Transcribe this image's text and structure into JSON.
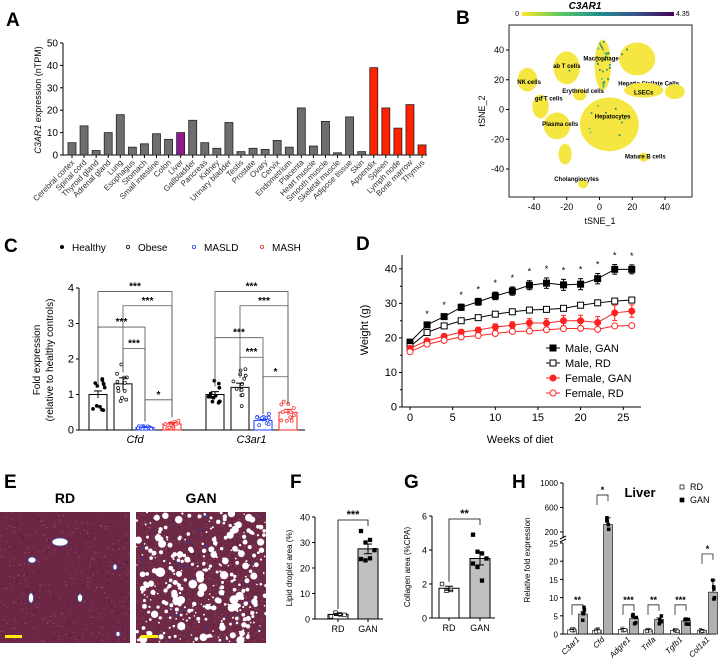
{
  "panel_letters": [
    "A",
    "B",
    "C",
    "D",
    "E",
    "F",
    "G",
    "H"
  ],
  "chart_data": [
    {
      "id": "A",
      "type": "bar",
      "ylabel_italic": "C3AR1",
      "ylabel_rest": " expression (nTPM)",
      "ylim": [
        0,
        50
      ],
      "yticks": [
        0,
        10,
        20,
        30,
        40,
        50
      ],
      "categories": [
        "Cerebral cortex",
        "Spinal cord",
        "Thyroid gland",
        "Adrenal gland",
        "Lung",
        "Esophagus",
        "Stomach",
        "Small intestine",
        "Colon",
        "Liver",
        "Gallbladder",
        "Pancreas",
        "Kidney",
        "Urinary bladder",
        "Testis",
        "Prostate",
        "Ovary",
        "Cervix",
        "Endometrium",
        "Placenta",
        "Heart muscle",
        "Smooth muscle",
        "Skeletal muscle",
        "Adipose tissue",
        "Skin",
        "Appendix",
        "Spleen",
        "Lymph node",
        "Bone marrow",
        "Thymus"
      ],
      "values": [
        5.5,
        13,
        2,
        10,
        18,
        3.5,
        5,
        9.5,
        7,
        10,
        15.5,
        5.5,
        3,
        14.5,
        1.5,
        3,
        2.5,
        6.5,
        3.5,
        21,
        4,
        15,
        1,
        17,
        1.5,
        39,
        21,
        12,
        22.5,
        4.5
      ],
      "group": [
        "g",
        "g",
        "g",
        "g",
        "g",
        "g",
        "g",
        "g",
        "g",
        "liver",
        "g",
        "g",
        "g",
        "g",
        "g",
        "g",
        "g",
        "g",
        "g",
        "g",
        "g",
        "g",
        "g",
        "g",
        "g",
        "immune",
        "immune",
        "immune",
        "immune",
        "immune"
      ],
      "colors": {
        "g": "#6e6e6e",
        "liver": "#8e1a8e",
        "immune": "#ff2200"
      }
    },
    {
      "id": "B",
      "type": "scatter",
      "title": "C3AR1",
      "colorbar_min": "0",
      "colorbar_max": "4.35",
      "xlabel": "tSNE_1",
      "ylabel": "tSNE_2",
      "xlim": [
        -55,
        55
      ],
      "ylim": [
        -55,
        55
      ],
      "xticks": [
        -40,
        -20,
        0,
        20,
        40
      ],
      "yticks": [
        -40,
        -20,
        0,
        20,
        40
      ],
      "clusters": [
        {
          "label": "Macrophages",
          "cx": 2,
          "cy": 30,
          "rx": 5,
          "ry": 17,
          "lx": 2,
          "ly": 33,
          "expr": 0.5
        },
        {
          "label": "ab T cells",
          "cx": -20,
          "cy": 28,
          "rx": 8,
          "ry": 11,
          "lx": -20,
          "ly": 28,
          "expr": 0.05
        },
        {
          "label": "NK cells",
          "cx": -44,
          "cy": 20,
          "rx": 6,
          "ry": 8,
          "lx": -43,
          "ly": 17,
          "expr": 0.05
        },
        {
          "label": "gd T cells",
          "cx": -36,
          "cy": 2,
          "rx": 5,
          "ry": 8,
          "lx": -31,
          "ly": 6,
          "expr": 0.05
        },
        {
          "label": "Erythroid cells",
          "cx": -12,
          "cy": 10,
          "rx": 4,
          "ry": 4,
          "lx": -10,
          "ly": 9,
          "expr": 0.02
        },
        {
          "label": "Hepatic Stellate Cells",
          "cx": 23,
          "cy": 34,
          "rx": 11,
          "ry": 11,
          "lx": 30,
          "ly": 16,
          "expr": 0.02
        },
        {
          "label": "LSECs",
          "cx": 27,
          "cy": 13,
          "rx": 12,
          "ry": 5,
          "lx": 27,
          "ly": 10,
          "expr": 0.02
        },
        {
          "label": "",
          "cx": 46,
          "cy": 12,
          "rx": 6,
          "ry": 5,
          "lx": 0,
          "ly": 0,
          "expr": 0.02
        },
        {
          "label": "Plasma cells",
          "cx": -26,
          "cy": -11,
          "rx": 8,
          "ry": 9,
          "lx": -24,
          "ly": -11,
          "expr": 0.02
        },
        {
          "label": "Hepatocytes",
          "cx": 6,
          "cy": -10,
          "rx": 18,
          "ry": 18,
          "lx": 8,
          "ly": -6,
          "expr": 0.02
        },
        {
          "label": "",
          "cx": -21,
          "cy": -30,
          "rx": 4,
          "ry": 7,
          "lx": 0,
          "ly": 0,
          "expr": 0.01
        },
        {
          "label": "Mature B cells",
          "cx": 27,
          "cy": -32,
          "rx": 3,
          "ry": 3,
          "lx": 28,
          "ly": -33,
          "expr": 0.01
        },
        {
          "label": "Cholangiocytes",
          "cx": -10,
          "cy": -50,
          "rx": 3,
          "ry": 3,
          "lx": -14,
          "ly": -48,
          "expr": 0.01
        }
      ]
    },
    {
      "id": "C",
      "type": "bar",
      "ylabel": "Fold expression",
      "ylabel2": "(relative to healthy controls)",
      "ylim": [
        0,
        4
      ],
      "yticks": [
        0,
        1,
        2,
        3,
        4
      ],
      "legend": [
        {
          "name": "Healthy",
          "color": "#000000",
          "filled": true
        },
        {
          "name": "Obese",
          "color": "#000000",
          "filled": false
        },
        {
          "name": "MASLD",
          "color": "#1a3cff",
          "filled": false
        },
        {
          "name": "MASH",
          "color": "#ff2222",
          "filled": false
        }
      ],
      "categories": [
        "Cfd",
        "C3ar1"
      ],
      "series_values": [
        [
          1.0,
          1.3,
          0.07,
          0.17
        ],
        [
          1.0,
          1.2,
          0.27,
          0.5
        ]
      ],
      "sem": [
        [
          0.1,
          0.17,
          0.02,
          0.04
        ],
        [
          0.08,
          0.12,
          0.03,
          0.08
        ]
      ],
      "comparisons": [
        {
          "group": 0,
          "from": 0,
          "to": 3,
          "level": 3.9,
          "label": "***"
        },
        {
          "group": 0,
          "from": 1,
          "to": 3,
          "level": 3.5,
          "label": "***"
        },
        {
          "group": 0,
          "from": 0,
          "to": 2,
          "level": 2.9,
          "label": "***"
        },
        {
          "group": 0,
          "from": 1,
          "to": 2,
          "level": 2.3,
          "label": "***"
        },
        {
          "group": 0,
          "from": 2,
          "to": 3,
          "level": 0.85,
          "label": "*"
        },
        {
          "group": 1,
          "from": 0,
          "to": 3,
          "level": 3.9,
          "label": "***"
        },
        {
          "group": 1,
          "from": 1,
          "to": 3,
          "level": 3.5,
          "label": "***"
        },
        {
          "group": 1,
          "from": 0,
          "to": 2,
          "level": 2.6,
          "label": "***"
        },
        {
          "group": 1,
          "from": 1,
          "to": 2,
          "level": 2.05,
          "label": "***"
        },
        {
          "group": 1,
          "from": 2,
          "to": 3,
          "level": 1.5,
          "label": "*"
        }
      ]
    },
    {
      "id": "D",
      "type": "line",
      "xlabel": "Weeks of diet",
      "ylabel": "Weight (g)",
      "xlim": [
        0,
        27
      ],
      "ylim": [
        0,
        44
      ],
      "xticks": [
        0,
        5,
        10,
        15,
        20,
        25
      ],
      "yticks": [
        0,
        10,
        20,
        30,
        40
      ],
      "x": [
        0,
        2,
        4,
        6,
        8,
        10,
        12,
        14,
        16,
        18,
        20,
        22,
        24,
        26
      ],
      "series": [
        {
          "name": "Male, GAN",
          "color": "#000000",
          "marker": "square",
          "filled": true,
          "values": [
            18.8,
            23.8,
            26.2,
            28.9,
            30.5,
            32.2,
            33.6,
            35.3,
            35.9,
            35.4,
            35.6,
            37.2,
            39.9,
            39.9
          ],
          "err": [
            0.5,
            0.6,
            0.7,
            0.9,
            1.0,
            1.1,
            1.2,
            1.3,
            1.5,
            1.6,
            1.6,
            1.5,
            1.4,
            1.3
          ]
        },
        {
          "name": "Male, RD",
          "color": "#000000",
          "marker": "square",
          "filled": false,
          "values": [
            17.5,
            21.6,
            23.5,
            25.0,
            25.9,
            26.9,
            27.6,
            28.1,
            28.3,
            28.6,
            29.5,
            30.2,
            30.7,
            31.0
          ],
          "err": [
            0.4,
            0.4,
            0.4,
            0.4,
            0.4,
            0.4,
            0.4,
            0.4,
            0.5,
            0.5,
            0.6,
            0.8,
            0.8,
            0.8
          ]
        },
        {
          "name": "Female, GAN",
          "color": "#ff2222",
          "marker": "circle",
          "filled": true,
          "values": [
            17.0,
            19.2,
            20.5,
            21.7,
            22.3,
            23.2,
            23.7,
            24.4,
            24.3,
            25.0,
            25.0,
            24.5,
            27.3,
            27.8
          ],
          "err": [
            0.4,
            0.5,
            0.6,
            0.7,
            0.8,
            0.9,
            1.0,
            1.2,
            1.3,
            1.5,
            1.6,
            1.7,
            2.2,
            1.8
          ]
        },
        {
          "name": "Female, RD",
          "color": "#ff2222",
          "marker": "circle",
          "filled": false,
          "values": [
            16.0,
            18.2,
            19.3,
            20.3,
            20.7,
            21.3,
            21.9,
            22.0,
            22.4,
            22.7,
            22.8,
            22.5,
            23.5,
            23.6
          ],
          "err": [
            0.3,
            0.3,
            0.3,
            0.3,
            0.3,
            0.3,
            0.3,
            0.3,
            0.3,
            0.3,
            0.3,
            0.3,
            0.3,
            0.3
          ]
        }
      ],
      "significance_label": "*",
      "significant_weeks": [
        2,
        4,
        6,
        8,
        10,
        12,
        14,
        16,
        18,
        20,
        22,
        24,
        26
      ],
      "legend_position": "bottom-right"
    },
    {
      "id": "E",
      "type": "image",
      "labels": [
        "RD",
        "GAN"
      ],
      "scale_bar_color": "#ffee00"
    },
    {
      "id": "F",
      "type": "bar",
      "ylabel": "Lipid droplet area (%)",
      "ylim": [
        0,
        40
      ],
      "yticks": [
        0,
        10,
        20,
        30,
        40
      ],
      "categories": [
        "RD",
        "GAN"
      ],
      "values": [
        1.8,
        27.5
      ],
      "sem": [
        0.4,
        1.9
      ],
      "points": [
        [
          1.0,
          2.5,
          1.8,
          1.6
        ],
        [
          34.5,
          30,
          31,
          27,
          23.5,
          23,
          23.8
        ]
      ],
      "significance": "***"
    },
    {
      "id": "G",
      "type": "bar",
      "ylabel": "Collagen area (%CPA)",
      "ylim": [
        0,
        6
      ],
      "yticks": [
        0,
        2,
        4,
        6
      ],
      "categories": [
        "RD",
        "GAN"
      ],
      "values": [
        1.75,
        3.5
      ],
      "sem": [
        0.12,
        0.38
      ],
      "points": [
        [
          2.0,
          1.6,
          1.65
        ],
        [
          4.9,
          3.9,
          3.8,
          3.5,
          3.2,
          3.0,
          2.2
        ]
      ],
      "significance": "**"
    },
    {
      "id": "H",
      "type": "bar",
      "title": "Liver",
      "ylabel": "Relative fold expression",
      "ylim_low": [
        0,
        25
      ],
      "ylim_high": [
        100,
        1000
      ],
      "yticks_low": [
        0,
        5,
        10,
        15,
        20,
        25
      ],
      "yticks_high": [
        200,
        600,
        1000
      ],
      "legend": [
        "RD",
        "GAN"
      ],
      "categories": [
        "C3ar1",
        "Cfd",
        "Adgre1",
        "Tnfa",
        "Tgfb1",
        "Col1a1"
      ],
      "series": [
        {
          "name": "RD",
          "values": [
            1.1,
            1.0,
            1.3,
            1.1,
            1.0,
            1.0
          ],
          "sem": [
            0.2,
            0.4,
            0.2,
            0.1,
            0.1,
            0.1
          ]
        },
        {
          "name": "GAN",
          "values": [
            5.5,
            320,
            4.2,
            4.0,
            3.6,
            11.5
          ],
          "sem": [
            0.6,
            110,
            0.3,
            0.4,
            0.4,
            3.3
          ]
        }
      ],
      "significance": [
        "**",
        "*",
        "***",
        "**",
        "***",
        "*"
      ]
    }
  ]
}
